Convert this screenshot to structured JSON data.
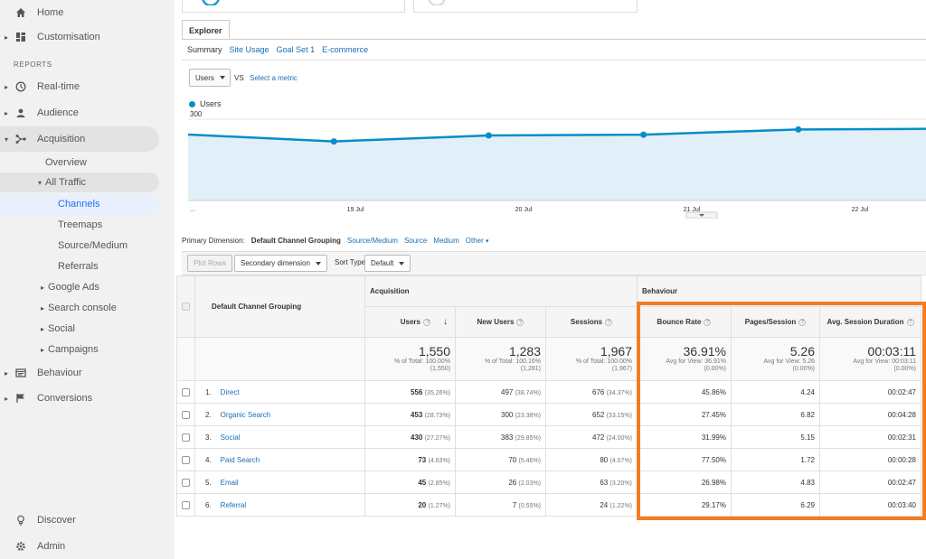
{
  "sidebar": {
    "home": "Home",
    "customisation": "Customisation",
    "reports_label": "REPORTS",
    "realtime": "Real-time",
    "audience": "Audience",
    "acquisition": "Acquisition",
    "overview": "Overview",
    "all_traffic": "All Traffic",
    "channels": "Channels",
    "treemaps": "Treemaps",
    "source_medium": "Source/Medium",
    "referrals": "Referrals",
    "google_ads": "Google Ads",
    "search_console": "Search console",
    "social": "Social",
    "campaigns": "Campaigns",
    "behaviour": "Behaviour",
    "conversions": "Conversions",
    "discover": "Discover",
    "admin": "Admin"
  },
  "explorer": {
    "tab": "Explorer",
    "subtabs": [
      "Summary",
      "Site Usage",
      "Goal Set 1",
      "E-commerce"
    ],
    "metric_select": "Users",
    "vs": "VS",
    "select_metric": "Select a metric"
  },
  "chart_data": {
    "type": "area",
    "series": [
      {
        "name": "Users",
        "values": [
          245,
          218,
          240,
          243,
          262,
          265
        ]
      }
    ],
    "x_labels": [
      "...",
      "19 Jul",
      "20 Jul",
      "21 Jul",
      "22 Jul"
    ],
    "y_ticks": [
      100,
      200,
      300
    ],
    "ylim": [
      0,
      300
    ],
    "color": "#058dc7",
    "fill": "#e1f0f8"
  },
  "dimension": {
    "label": "Primary Dimension:",
    "current": "Default Channel Grouping",
    "links": [
      "Source/Medium",
      "Source",
      "Medium",
      "Other"
    ]
  },
  "controls": {
    "plot_rows": "Plot Rows",
    "secondary_dimension": "Secondary dimension",
    "sort_type_label": "Sort Type:",
    "sort_type": "Default"
  },
  "table": {
    "dimension_header": "Default Channel Grouping",
    "acquisition_header": "Acquisition",
    "behaviour_header": "Behaviour",
    "columns": [
      "Users",
      "New Users",
      "Sessions",
      "Bounce Rate",
      "Pages/Session",
      "Avg. Session Duration"
    ],
    "totals": {
      "users": {
        "value": "1,550",
        "sub1": "% of Total: 100.00%",
        "sub2": "(1,550)"
      },
      "new_users": {
        "value": "1,283",
        "sub1": "% of Total: 100.16%",
        "sub2": "(1,281)"
      },
      "sessions": {
        "value": "1,967",
        "sub1": "% of Total: 100.00%",
        "sub2": "(1,967)"
      },
      "bounce_rate": {
        "value": "36.91%",
        "sub1": "Avg for View: 36.91%",
        "sub2": "(0.00%)"
      },
      "pages_session": {
        "value": "5.26",
        "sub1": "Avg for View: 5.26",
        "sub2": "(0.00%)"
      },
      "avg_duration": {
        "value": "00:03:11",
        "sub1": "Avg for View: 00:03:11",
        "sub2": "(0.00%)"
      }
    },
    "rows": [
      {
        "num": "1.",
        "name": "Direct",
        "users": "556",
        "users_pct": "(35.26%)",
        "new_users": "497",
        "new_users_pct": "(38.74%)",
        "sessions": "676",
        "sessions_pct": "(34.37%)",
        "bounce": "45.86%",
        "pps": "4.24",
        "dur": "00:02:47"
      },
      {
        "num": "2.",
        "name": "Organic Search",
        "users": "453",
        "users_pct": "(28.73%)",
        "new_users": "300",
        "new_users_pct": "(23.38%)",
        "sessions": "652",
        "sessions_pct": "(33.15%)",
        "bounce": "27.45%",
        "pps": "6.82",
        "dur": "00:04:28"
      },
      {
        "num": "3.",
        "name": "Social",
        "users": "430",
        "users_pct": "(27.27%)",
        "new_users": "383",
        "new_users_pct": "(29.85%)",
        "sessions": "472",
        "sessions_pct": "(24.00%)",
        "bounce": "31.99%",
        "pps": "5.15",
        "dur": "00:02:31"
      },
      {
        "num": "4.",
        "name": "Paid Search",
        "users": "73",
        "users_pct": "(4.63%)",
        "new_users": "70",
        "new_users_pct": "(5.46%)",
        "sessions": "80",
        "sessions_pct": "(4.07%)",
        "bounce": "77.50%",
        "pps": "1.72",
        "dur": "00:00:28"
      },
      {
        "num": "5.",
        "name": "Email",
        "users": "45",
        "users_pct": "(2.85%)",
        "new_users": "26",
        "new_users_pct": "(2.03%)",
        "sessions": "63",
        "sessions_pct": "(3.20%)",
        "bounce": "26.98%",
        "pps": "4.83",
        "dur": "00:02:47"
      },
      {
        "num": "6.",
        "name": "Referral",
        "users": "20",
        "users_pct": "(1.27%)",
        "new_users": "7",
        "new_users_pct": "(0.55%)",
        "sessions": "24",
        "sessions_pct": "(1.22%)",
        "bounce": "29.17%",
        "pps": "6.29",
        "dur": "00:03:40"
      }
    ]
  },
  "highlight_color": "#f57c20"
}
